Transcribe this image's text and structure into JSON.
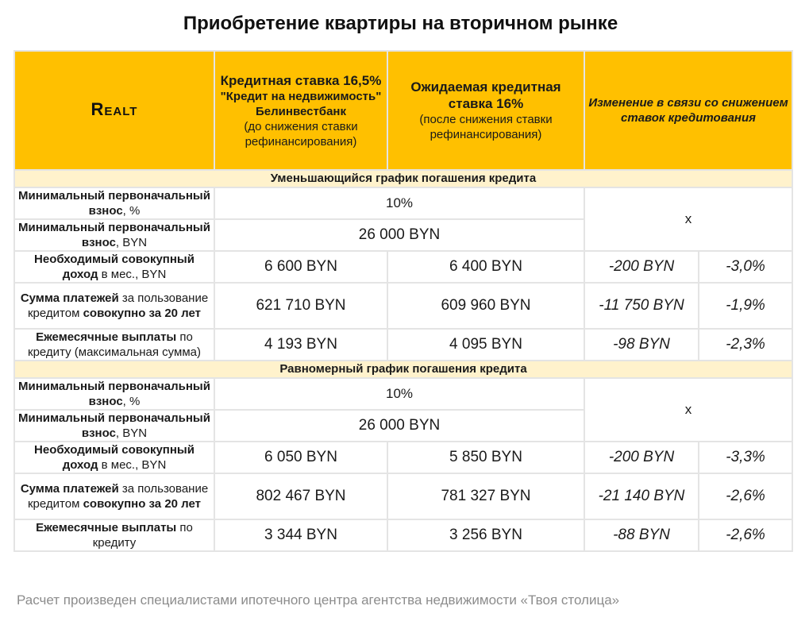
{
  "title": "Приобретение квартиры на вторичном рынке",
  "colors": {
    "header_bg": "#ffc000",
    "section_bg": "#fff2cc",
    "grid": "#e4e4e4"
  },
  "header": {
    "logo": "Realt",
    "col1": {
      "main": "Кредитная ставка 16,5%",
      "product": "\"Кредит на недвижимость\"",
      "bank": "Белинвестбанк",
      "note": "(до снижения ставки рефинансирования)"
    },
    "col2": {
      "main": "Ожидаемая кредитная ставка 16%",
      "note": "(после снижения ставки рефинансирования)"
    },
    "col3": "Изменение в связи со снижением ставок кредитования"
  },
  "sections": [
    {
      "title": "Уменьшающийся график погашения кредита",
      "min_payment_pct": {
        "label_b": "Минимальный первоначальный взнос",
        "label_n": ", %",
        "value": "10%"
      },
      "min_payment_byn": {
        "label_b": "Минимальный первоначальный взнос",
        "label_n": ", BYN",
        "value": "26 000 BYN"
      },
      "change_x": "x",
      "income": {
        "label_b": "Необходимый совокупный доход",
        "label_n": " в мес., BYN",
        "v1": "6 600 BYN",
        "v2": "6 400 BYN",
        "d": "-200 BYN",
        "p": "-3,0%"
      },
      "total": {
        "label_b1": "Сумма платежей",
        "label_n": " за пользование кредитом ",
        "label_b2": "совокупно за 20 лет",
        "v1": "621 710 BYN",
        "v2": "609 960 BYN",
        "d": "-11 750 BYN",
        "p": "-1,9%"
      },
      "monthly": {
        "label_b": "Ежемесячные выплаты",
        "label_n": " по кредиту (максимальная сумма)",
        "v1": "4 193 BYN",
        "v2": "4 095 BYN",
        "d": "-98 BYN",
        "p": "-2,3%"
      }
    },
    {
      "title": "Равномерный график погашения кредита",
      "min_payment_pct": {
        "label_b": "Минимальный первоначальный взнос",
        "label_n": ", %",
        "value": "10%"
      },
      "min_payment_byn": {
        "label_b": "Минимальный первоначальный взнос",
        "label_n": ", BYN",
        "value": "26 000 BYN"
      },
      "change_x": "x",
      "income": {
        "label_b": "Необходимый совокупный доход",
        "label_n": " в мес., BYN",
        "v1": "6 050 BYN",
        "v2": "5 850 BYN",
        "d": "-200 BYN",
        "p": "-3,3%"
      },
      "total": {
        "label_b1": "Сумма платежей",
        "label_n": " за пользование кредитом ",
        "label_b2": "совокупно за 20 лет",
        "v1": "802 467 BYN",
        "v2": "781 327 BYN",
        "d": "-21 140 BYN",
        "p": "-2,6%"
      },
      "monthly": {
        "label_b": "Ежемесячные выплаты",
        "label_n": " по кредиту",
        "v1": "3 344 BYN",
        "v2": "3 256 BYN",
        "d": "-88 BYN",
        "p": "-2,6%"
      }
    }
  ],
  "footer": "Расчет произведен специалистами ипотечного центра агентства недвижимости «Твоя столица»"
}
